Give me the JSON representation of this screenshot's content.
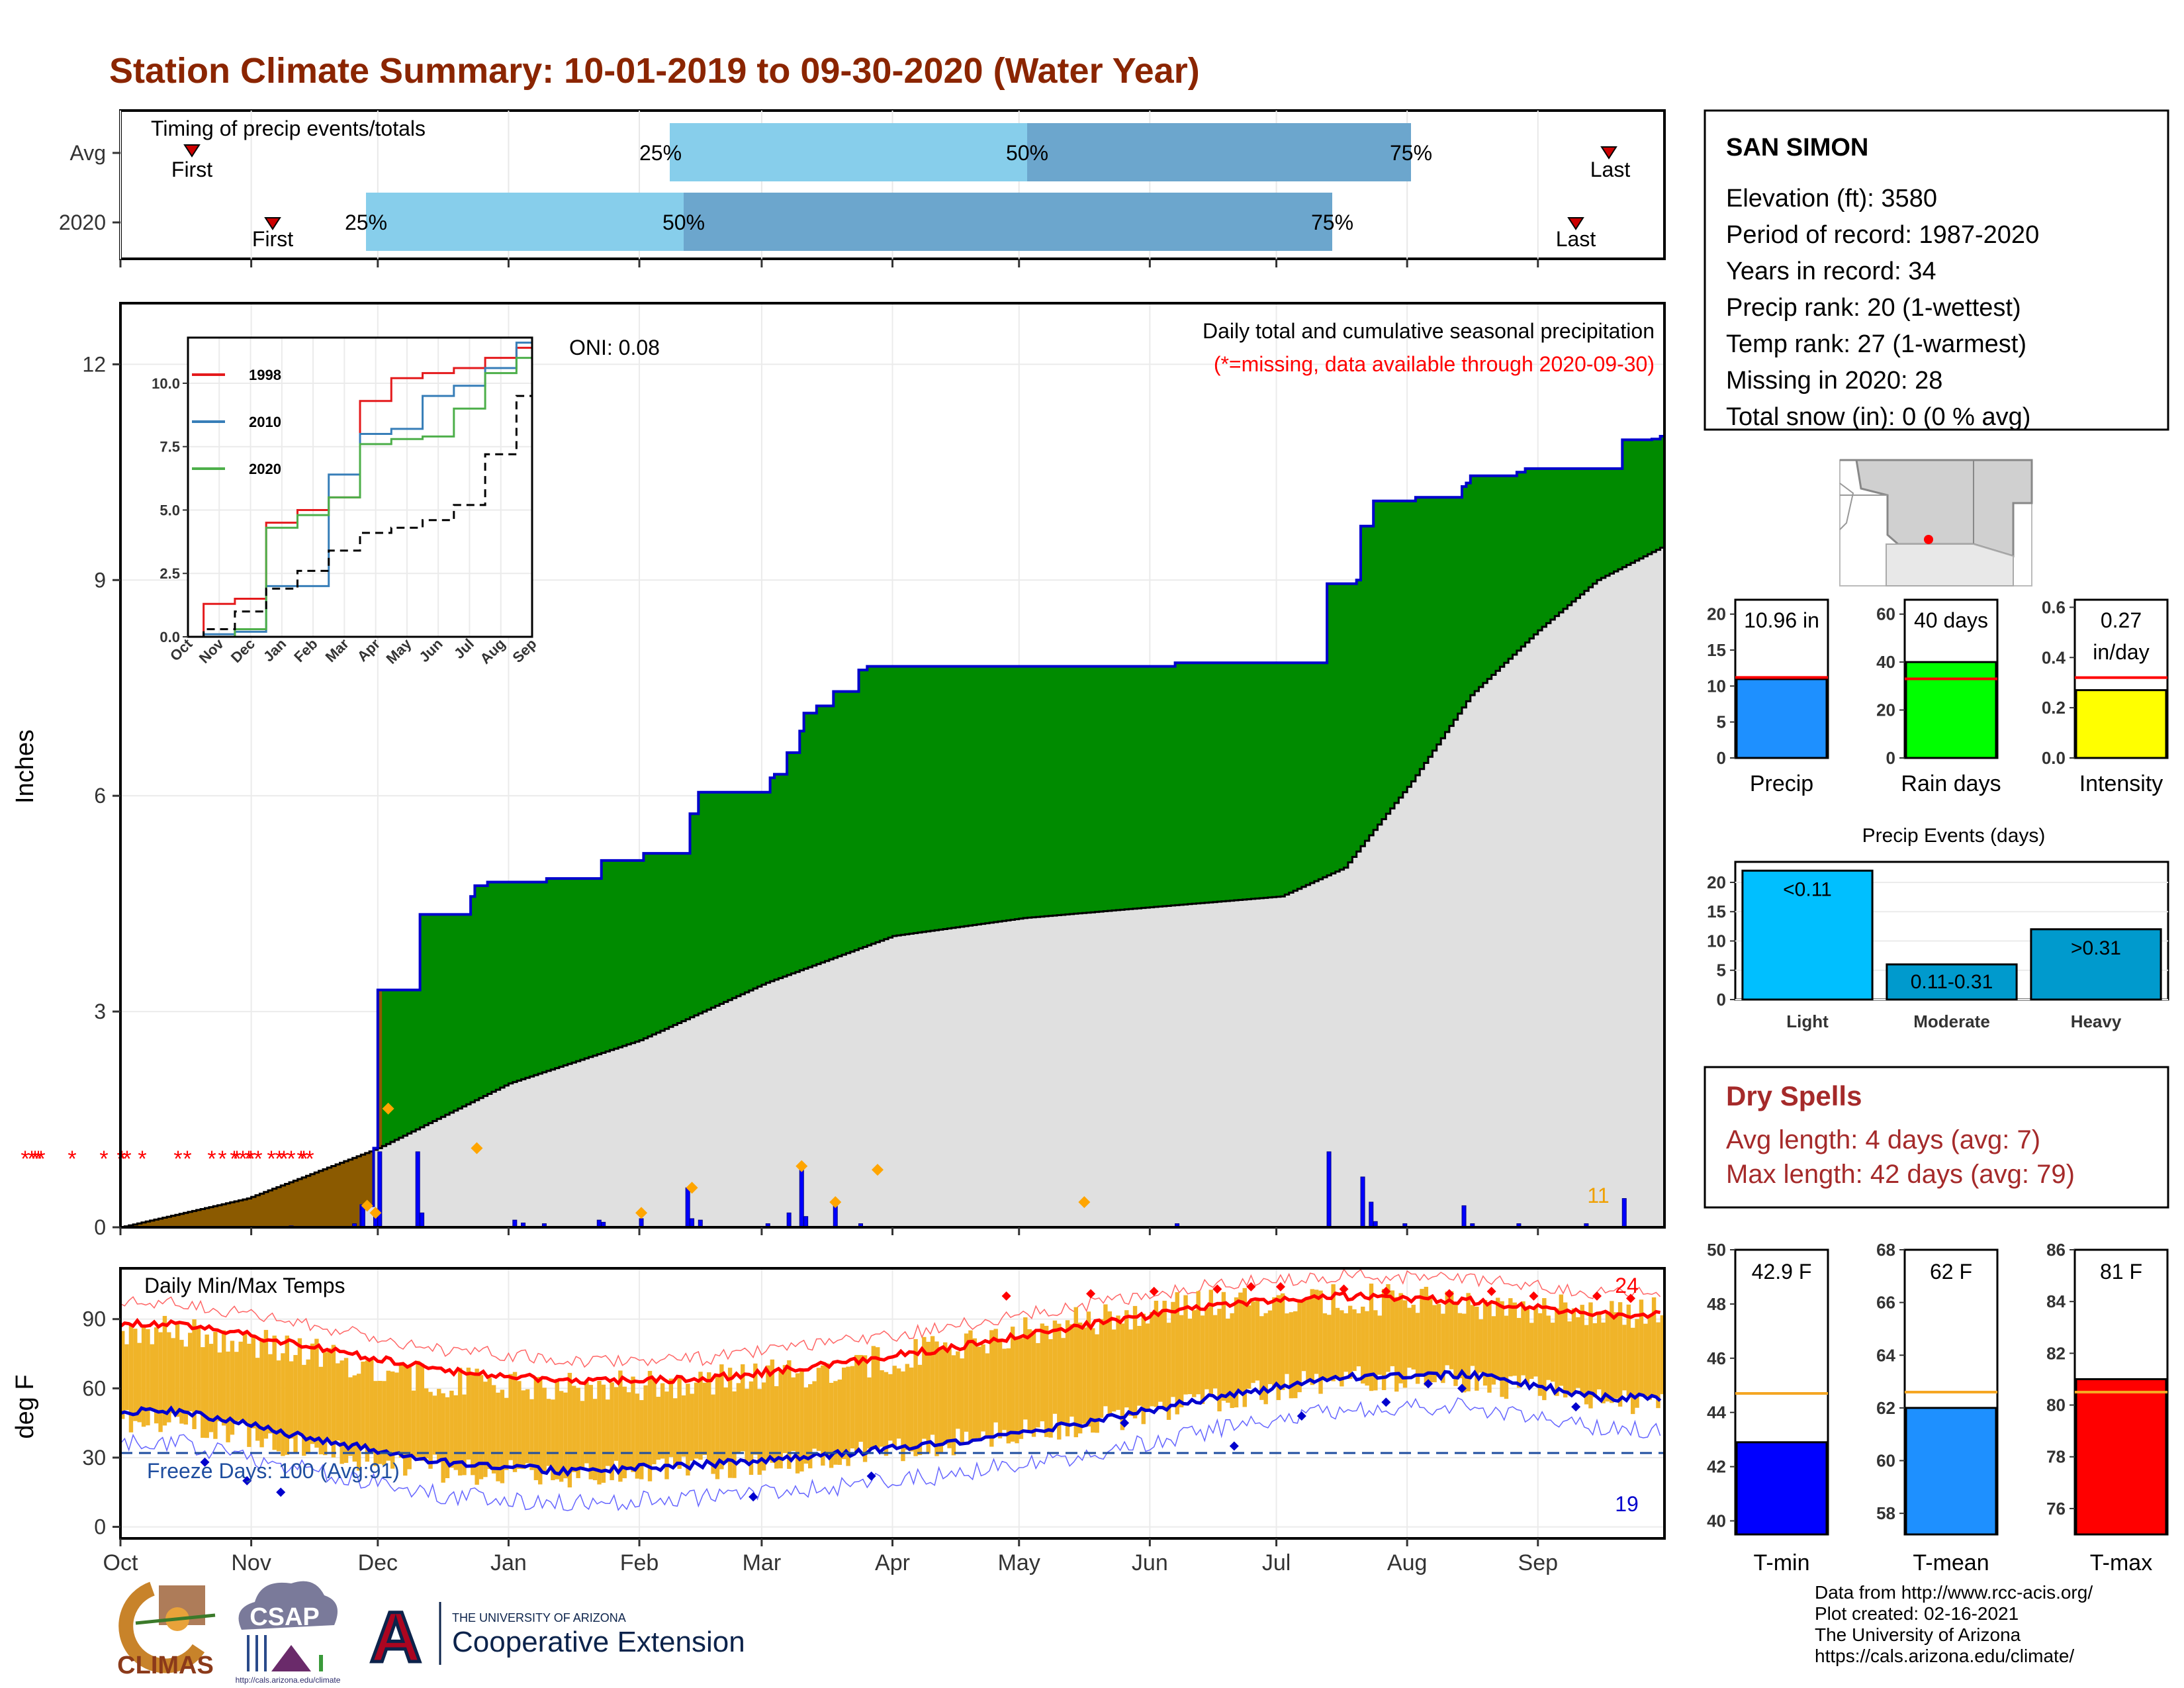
{
  "title": "Station Climate Summary: 10-01-2019 to 09-30-2020 (Water Year)",
  "colors": {
    "title": "#8B2500",
    "quartile_light": "#87CEEB",
    "quartile_dark": "#6CA6CD",
    "cumulative_fill": "#008B00",
    "cumulative_line": "#0000CD",
    "avg_fill": "#E0E0E0",
    "deficit_fill": "#8B5A00",
    "daily_bars": "#0000FF",
    "missing": "#FF0000",
    "tmax": "#FF0000",
    "tmin": "#0000CD",
    "temp_bars": "#F0B429"
  },
  "timing_panel": {
    "title": "Timing of precip events/totals",
    "rows": [
      {
        "label": "Avg",
        "first": "First",
        "last": "Last",
        "p25": "25%",
        "p50": "50%",
        "p75": "75%"
      },
      {
        "label": "2020",
        "first": "First",
        "last": "Last",
        "p25": "25%",
        "p50": "50%",
        "p75": "75%"
      }
    ]
  },
  "precip_panel": {
    "ylabel": "Inches",
    "y_ticks": [
      "0",
      "3",
      "6",
      "9",
      "12"
    ],
    "oni": "ONI: 0.08",
    "legend_title": "Daily total and cumulative seasonal precipitation",
    "legend_sub": "(*=missing, data available through 2020-09-30)",
    "count_label": "11"
  },
  "inset": {
    "y_ticks": [
      "0.0",
      "2.5",
      "5.0",
      "7.5",
      "10.0"
    ],
    "x_ticks": [
      "Oct",
      "Nov",
      "Dec",
      "Jan",
      "Feb",
      "Mar",
      "Apr",
      "May",
      "Jun",
      "Jul",
      "Aug",
      "Sep"
    ],
    "legend": [
      {
        "name": "1998",
        "color": "#E41A1C"
      },
      {
        "name": "2010",
        "color": "#377EB8"
      },
      {
        "name": "2020",
        "color": "#4DAF4A"
      }
    ]
  },
  "temp_panel": {
    "title": "Daily Min/Max Temps",
    "ylabel": "deg F",
    "y_ticks": [
      "0",
      "30",
      "60",
      "90"
    ],
    "freeze": "Freeze Days: 100 (Avg:91)",
    "hot_count": "24",
    "cold_count": "19"
  },
  "month_labels": [
    "Oct",
    "Nov",
    "Dec",
    "Jan",
    "Feb",
    "Mar",
    "Apr",
    "May",
    "Jun",
    "Jul",
    "Aug",
    "Sep"
  ],
  "station": {
    "name": "SAN SIMON",
    "lines": [
      "Elevation (ft): 3580",
      "Period of record: 1987-2020",
      "Years in record: 34",
      "Precip rank: 20 (1-wettest)",
      "Temp rank: 27 (1-warmest)",
      "Missing in 2020: 28",
      "Total snow (in): 0 (0 % avg)"
    ]
  },
  "mini_bars": [
    {
      "label": "Precip",
      "value_label": "10.96 in",
      "value": 10.96,
      "avg": 11.2,
      "ymax": 22,
      "ticks": [
        "0",
        "5",
        "10",
        "15",
        "20"
      ],
      "tickvals": [
        0,
        5,
        10,
        15,
        20
      ],
      "color": "#1E90FF",
      "avg_color": "#FF0000"
    },
    {
      "label": "Rain days",
      "value_label": "40 days",
      "value": 40,
      "avg": 33,
      "ymax": 66,
      "ticks": [
        "0",
        "20",
        "40",
        "60"
      ],
      "tickvals": [
        0,
        20,
        40,
        60
      ],
      "color": "#00FF00",
      "avg_color": "#FF0000"
    },
    {
      "label": "Intensity",
      "value_label": "0.27",
      "value_label2": "in/day",
      "value": 0.27,
      "avg": 0.32,
      "ymax": 0.63,
      "ticks": [
        "0.0",
        "0.2",
        "0.4",
        "0.6"
      ],
      "tickvals": [
        0,
        0.2,
        0.4,
        0.6
      ],
      "color": "#FFFF00",
      "avg_color": "#FF0000"
    }
  ],
  "events": {
    "title": "Precip Events (days)",
    "y_ticks": [
      "0",
      "5",
      "10",
      "15",
      "20"
    ],
    "categories": [
      "Light",
      "Moderate",
      "Heavy"
    ],
    "values": [
      22,
      6,
      12
    ],
    "labels": [
      "<0.11",
      "0.11-0.31",
      ">0.31"
    ],
    "colors": [
      "#00BFFF",
      "#009ACD",
      "#009ACD"
    ]
  },
  "dry_spells": {
    "title": "Dry Spells",
    "avg": "Avg length: 4 days (avg: 7)",
    "max": "Max length: 42 days (avg: 79)"
  },
  "temp_bars": [
    {
      "label": "T-min",
      "value_label": "42.9 F",
      "value": 42.9,
      "avg": 44.7,
      "ymin": 39.5,
      "ymax": 50,
      "ticks": [
        "40",
        "42",
        "44",
        "46",
        "48",
        "50"
      ],
      "tickvals": [
        40,
        42,
        44,
        46,
        48,
        50
      ],
      "color": "#0000FF"
    },
    {
      "label": "T-mean",
      "value_label": "62 F",
      "value": 62,
      "avg": 62.6,
      "ymin": 57.2,
      "ymax": 68,
      "ticks": [
        "58",
        "60",
        "62",
        "64",
        "66",
        "68"
      ],
      "tickvals": [
        58,
        60,
        62,
        64,
        66,
        68
      ],
      "color": "#1E90FF"
    },
    {
      "label": "T-max",
      "value_label": "81 F",
      "value": 81,
      "avg": 80.5,
      "ymin": 75,
      "ymax": 86,
      "ticks": [
        "76",
        "78",
        "80",
        "82",
        "84",
        "86"
      ],
      "tickvals": [
        76,
        78,
        80,
        82,
        84,
        86
      ],
      "color": "#FF0000"
    }
  ],
  "logos": {
    "climas": "CLIMAS",
    "csap": "CSAP",
    "csap_url": "http://cals.arizona.edu/climate",
    "ua_small": "THE UNIVERSITY OF ARIZONA",
    "ua_big": "Cooperative Extension",
    "ua_letter": "A"
  },
  "footer": [
    "Data from http://www.rcc-acis.org/",
    "Plot created: 02-16-2021",
    "The University of Arizona",
    "https://cals.arizona.edu/climate/"
  ],
  "chart_data": [
    {
      "type": "table",
      "title": "Timing of precip events/totals",
      "rows": [
        "Avg",
        "2020"
      ],
      "columns": [
        "First",
        "25%",
        "50%",
        "75%",
        "Last"
      ],
      "values": [
        [
          "2019-10-18",
          "2020-02-07",
          "2020-04-29",
          "2020-07-31",
          "2020-09-17"
        ],
        [
          "2019-11-08",
          "2019-12-01",
          "2020-02-08",
          "2020-07-11",
          "2020-09-09"
        ]
      ]
    },
    {
      "type": "area",
      "title": "Daily total and cumulative seasonal precipitation",
      "ylabel": "Inches",
      "ylim": [
        0,
        12
      ],
      "cumulative_2020": [
        [
          0,
          0.0
        ],
        [
          50,
          0.0
        ],
        [
          57,
          0.3
        ],
        [
          60,
          1.1
        ],
        [
          61,
          3.3
        ],
        [
          70,
          3.3
        ],
        [
          71,
          4.35
        ],
        [
          82,
          4.35
        ],
        [
          83,
          4.6
        ],
        [
          84,
          4.75
        ],
        [
          87,
          4.8
        ],
        [
          100,
          4.8
        ],
        [
          101,
          4.85
        ],
        [
          113,
          4.85
        ],
        [
          114,
          5.1
        ],
        [
          123,
          5.1
        ],
        [
          124,
          5.2
        ],
        [
          134,
          5.2
        ],
        [
          135,
          5.75
        ],
        [
          137,
          6.05
        ],
        [
          153,
          6.05
        ],
        [
          154,
          6.25
        ],
        [
          155,
          6.3
        ],
        [
          158,
          6.6
        ],
        [
          161,
          6.9
        ],
        [
          162,
          7.15
        ],
        [
          165,
          7.25
        ],
        [
          169,
          7.45
        ],
        [
          175,
          7.75
        ],
        [
          177,
          7.8
        ],
        [
          250,
          7.85
        ],
        [
          285,
          7.85
        ],
        [
          286,
          8.95
        ],
        [
          292,
          8.95
        ],
        [
          293,
          9.0
        ],
        [
          294,
          9.75
        ],
        [
          297,
          10.1
        ],
        [
          305,
          10.1
        ],
        [
          307,
          10.15
        ],
        [
          318,
          10.3
        ],
        [
          319,
          10.35
        ],
        [
          320,
          10.45
        ],
        [
          331,
          10.5
        ],
        [
          333,
          10.55
        ],
        [
          355,
          10.55
        ],
        [
          356,
          10.95
        ],
        [
          363,
          10.96
        ],
        [
          365,
          11.0
        ]
      ],
      "average": [
        [
          0,
          0.0
        ],
        [
          30,
          0.4
        ],
        [
          61,
          1.1
        ],
        [
          92,
          2.0
        ],
        [
          123,
          2.6
        ],
        [
          153,
          3.4
        ],
        [
          183,
          4.05
        ],
        [
          214,
          4.3
        ],
        [
          244,
          4.45
        ],
        [
          275,
          4.6
        ],
        [
          290,
          5.0
        ],
        [
          306,
          6.2
        ],
        [
          320,
          7.4
        ],
        [
          336,
          8.3
        ],
        [
          350,
          9.0
        ],
        [
          365,
          9.45
        ]
      ],
      "daily_bars": [
        [
          29,
          0.01
        ],
        [
          40,
          0.02
        ],
        [
          55,
          0.05
        ],
        [
          57,
          0.3
        ],
        [
          60,
          0.2
        ],
        [
          61,
          1.05
        ],
        [
          70,
          1.05
        ],
        [
          71,
          0.2
        ],
        [
          93,
          0.1
        ],
        [
          95,
          0.06
        ],
        [
          100,
          0.05
        ],
        [
          113,
          0.1
        ],
        [
          114,
          0.07
        ],
        [
          123,
          0.12
        ],
        [
          134,
          0.55
        ],
        [
          135,
          0.12
        ],
        [
          137,
          0.1
        ],
        [
          153,
          0.05
        ],
        [
          158,
          0.2
        ],
        [
          161,
          0.85
        ],
        [
          162,
          0.15
        ],
        [
          169,
          0.35
        ],
        [
          175,
          0.05
        ],
        [
          250,
          0.05
        ],
        [
          286,
          1.05
        ],
        [
          294,
          0.7
        ],
        [
          296,
          0.35
        ],
        [
          297,
          0.08
        ],
        [
          304,
          0.05
        ],
        [
          318,
          0.3
        ],
        [
          320,
          0.05
        ],
        [
          331,
          0.05
        ],
        [
          347,
          0.05
        ],
        [
          356,
          0.4
        ]
      ],
      "missing_days": [
        38,
        48,
        53,
        58,
        62,
        109,
        157,
        183,
        184,
        192,
        215,
        269,
        283,
        320,
        336,
        354,
        358,
        367,
        376,
        379,
        390,
        410,
        422,
        429,
        440,
        455,
        459,
        468
      ],
      "avg_markers": [
        [
          58,
          0.3
        ],
        [
          60,
          0.2
        ],
        [
          63,
          1.65
        ],
        [
          84,
          1.1
        ],
        [
          123,
          0.2
        ],
        [
          135,
          0.55
        ],
        [
          161,
          0.85
        ],
        [
          169,
          0.35
        ],
        [
          179,
          0.8
        ],
        [
          228,
          0.35
        ]
      ]
    },
    {
      "type": "line",
      "title": "",
      "x": [
        "Oct",
        "Nov",
        "Dec",
        "Jan",
        "Feb",
        "Mar",
        "Apr",
        "May",
        "Jun",
        "Jul",
        "Aug",
        "Sep"
      ],
      "ylim": [
        0,
        11.8
      ],
      "series": [
        {
          "name": "1998",
          "values": [
            0.0,
            1.3,
            1.5,
            4.5,
            5.0,
            5.5,
            9.3,
            10.2,
            10.4,
            10.6,
            11.0,
            11.4
          ]
        },
        {
          "name": "2010",
          "values": [
            0.0,
            0.1,
            0.2,
            2.0,
            2.0,
            6.4,
            8.0,
            8.2,
            9.5,
            9.9,
            10.6,
            11.6
          ]
        },
        {
          "name": "2020",
          "values": [
            0.0,
            0.0,
            0.3,
            4.3,
            4.8,
            5.5,
            7.6,
            7.8,
            7.9,
            9.0,
            10.4,
            11.0
          ]
        },
        {
          "name": "",
          "values": [
            0.0,
            0.3,
            1.0,
            1.9,
            2.6,
            3.4,
            4.1,
            4.3,
            4.6,
            5.2,
            7.2,
            9.5
          ]
        }
      ]
    },
    {
      "type": "bar",
      "title": "Daily Min/Max Temps",
      "ylabel": "deg F",
      "ylim": [
        0,
        110
      ],
      "x": [
        "Oct",
        "Nov",
        "Dec",
        "Jan",
        "Feb",
        "Mar",
        "Apr",
        "May",
        "Jun",
        "Jul",
        "Aug",
        "Sep"
      ],
      "series": [
        {
          "name": "tmax_avg",
          "values": [
            88,
            78,
            68,
            63,
            64,
            70,
            78,
            87,
            96,
            100,
            98,
            92
          ]
        },
        {
          "name": "tmin_avg",
          "values": [
            50,
            38,
            28,
            24,
            27,
            31,
            37,
            45,
            56,
            65,
            66,
            56
          ]
        },
        {
          "name": "tmax_2020",
          "values": [
            85,
            75,
            63,
            60,
            63,
            68,
            78,
            89,
            97,
            99,
            97,
            93
          ]
        },
        {
          "name": "tmin_2020",
          "values": [
            46,
            33,
            25,
            22,
            26,
            30,
            37,
            45,
            55,
            65,
            64,
            54
          ]
        }
      ],
      "freeze_line": 32
    },
    {
      "type": "bar",
      "title": "",
      "categories": [
        "Precip",
        "Rain days",
        "Intensity"
      ],
      "values": [
        10.96,
        40,
        0.27
      ],
      "averages": [
        11.2,
        33,
        0.32
      ]
    },
    {
      "type": "bar",
      "title": "Precip Events (days)",
      "categories": [
        "Light",
        "Moderate",
        "Heavy"
      ],
      "values": [
        22,
        6,
        12
      ]
    },
    {
      "type": "bar",
      "title": "",
      "categories": [
        "T-min",
        "T-mean",
        "T-max"
      ],
      "values": [
        42.9,
        62,
        81
      ],
      "averages": [
        44.7,
        62.6,
        80.5
      ]
    }
  ]
}
